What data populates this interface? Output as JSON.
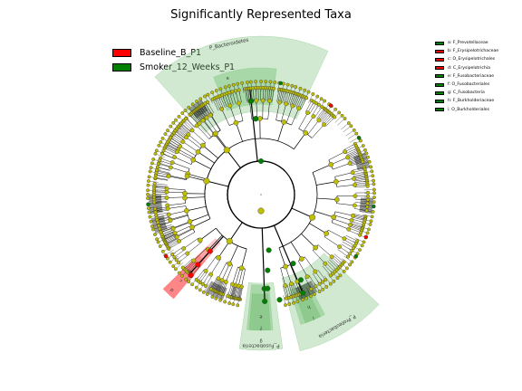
{
  "title": "Significantly Represented Taxa",
  "groups": [
    {
      "name": "Baseline_B_P1",
      "color": "#ff0000"
    },
    {
      "name": "Smoker_12_Weeks_P1",
      "color": "#008000"
    }
  ],
  "taxa_legend": [
    {
      "label": "a: F_Prevotellaceae",
      "color": "#008000"
    },
    {
      "label": "b: F_Erysipelotrichaceae",
      "color": "#ff0000"
    },
    {
      "label": "c: O_Erysipelotrichales",
      "color": "#ff0000"
    },
    {
      "label": "d: C_Erysipelotrichia",
      "color": "#ff0000"
    },
    {
      "label": "e: F_Fusobacteriaceae",
      "color": "#008000"
    },
    {
      "label": "f: O_Fusobacteriales",
      "color": "#008000"
    },
    {
      "label": "g: C_Fusobacteria",
      "color": "#008000"
    },
    {
      "label": "h: F_Burkholderiaceae",
      "color": "#008000"
    },
    {
      "label": "i: O_Burkholderiales",
      "color": "#008000"
    }
  ],
  "sector_labels": {
    "bacteroidetes": "P_Bacteroidetes",
    "fusobacteria": "P_Fusobacteria",
    "proteobacteria": "P_Proteobacteria",
    "a": "a",
    "b": "b",
    "c": "c",
    "d": "d",
    "e": "e",
    "f": "f",
    "g": "g",
    "h": "h",
    "i": "i"
  },
  "colors": {
    "node_default": "#bfbf00",
    "node_green": "#008000",
    "node_red": "#ff0000",
    "shade_green": "#78c078",
    "shade_red": "#ff7070"
  }
}
